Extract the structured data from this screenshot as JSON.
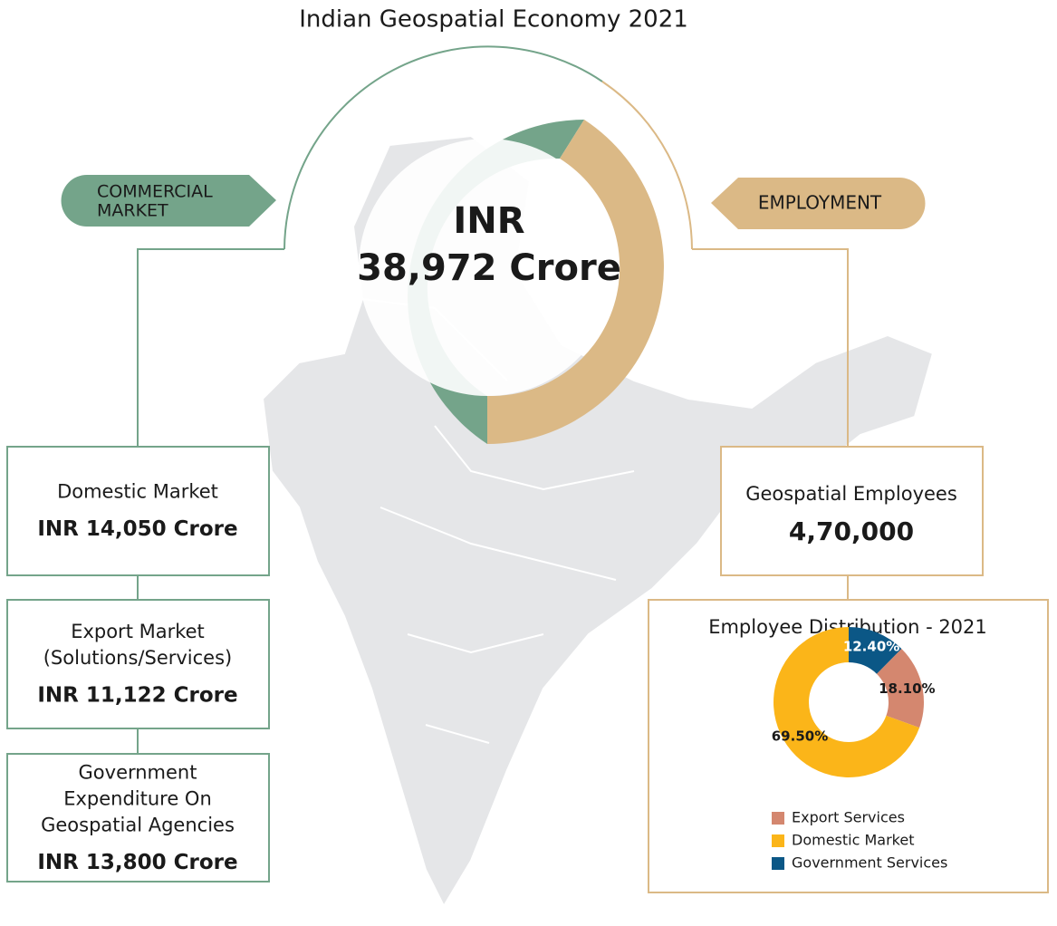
{
  "title": "Indian Geospatial Economy 2021",
  "commercial_tag": [
    "COMMERCIAL",
    "MARKET"
  ],
  "employment_tag": "EMPLOYMENT",
  "center": [
    "INR",
    "38,972 Crore"
  ],
  "left_boxes": [
    {
      "label": [
        "Domestic Market"
      ],
      "value": "INR 14,050 Crore"
    },
    {
      "label": [
        "Export Market",
        "(Solutions/Services)"
      ],
      "value": "INR 11,122 Crore"
    },
    {
      "label": [
        "Government",
        "Expenditure On",
        "Geospatial Agencies"
      ],
      "value": "INR 13,800 Crore"
    }
  ],
  "employees_box": {
    "label": "Geospatial Employees",
    "value": "4,70,000"
  },
  "chart_data": {
    "type": "pie",
    "title": "Employee Distribution - 2021",
    "categories": [
      "Export Services",
      "Domestic Market",
      "Government Services"
    ],
    "values": [
      18.1,
      69.5,
      12.4
    ],
    "value_labels": [
      "18.10%",
      "69.50%",
      "12.40%"
    ],
    "colors": [
      "#d4876f",
      "#fbb519",
      "#0b5786"
    ]
  }
}
